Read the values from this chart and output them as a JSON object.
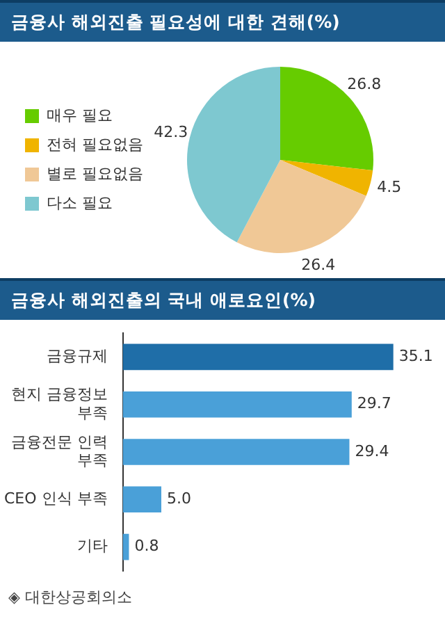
{
  "chart_data": [
    {
      "type": "pie",
      "title": "금융사 해외진출 필요성에 대한 견해(%)",
      "categories": [
        "매우 필요",
        "전혀 필요없음",
        "별로 필요없음",
        "다소 필요"
      ],
      "values": [
        26.8,
        4.5,
        26.4,
        42.3
      ],
      "colors": [
        "#66cc00",
        "#f0b400",
        "#f0c896",
        "#7ec8d0"
      ],
      "data_labels": true,
      "legend": "left"
    },
    {
      "type": "bar",
      "orientation": "horizontal",
      "title": "금융사 해외진출의 국내 애로요인(%)",
      "categories": [
        "금융규제",
        "현지 금융정보 부족",
        "금융전문 인력 부족",
        "CEO 인식 부족",
        "기타"
      ],
      "values": [
        35.1,
        29.7,
        29.4,
        5.0,
        0.8
      ],
      "value_labels": [
        "35.1",
        "29.7",
        "29.4",
        "5.0",
        "0.8"
      ],
      "colors": [
        "#1f6ea8",
        "#4aa0d8",
        "#4aa0d8",
        "#4aa0d8",
        "#4aa0d8"
      ],
      "tick_labels": "y",
      "annotations": [
        "◈ 대한상공회의소"
      ]
    }
  ]
}
